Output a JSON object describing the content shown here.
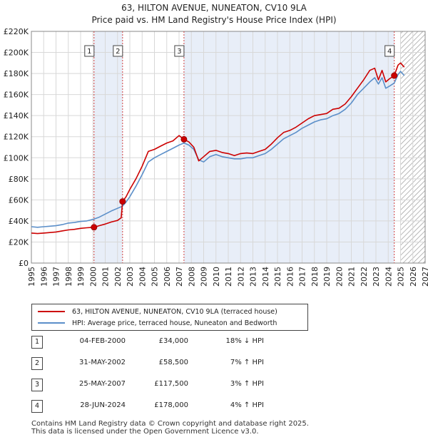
{
  "chart_data": {
    "type": "line",
    "title": "63, HILTON AVENUE, NUNEATON, CV10 9LA",
    "subtitle": "Price paid vs. HM Land Registry's House Price Index (HPI)",
    "xlim": [
      1995,
      2027
    ],
    "ylim": [
      0,
      220000
    ],
    "x_ticks": [
      "1995",
      "1996",
      "1997",
      "1998",
      "1999",
      "2000",
      "2001",
      "2002",
      "2003",
      "2004",
      "2005",
      "2006",
      "2007",
      "2008",
      "2009",
      "2010",
      "2011",
      "2012",
      "2013",
      "2014",
      "2015",
      "2016",
      "2017",
      "2018",
      "2019",
      "2020",
      "2021",
      "2022",
      "2023",
      "2024",
      "2025",
      "2026",
      "2027"
    ],
    "y_ticks": [
      {
        "value": 0,
        "label": "£0"
      },
      {
        "value": 20000,
        "label": "£20K"
      },
      {
        "value": 40000,
        "label": "£40K"
      },
      {
        "value": 60000,
        "label": "£60K"
      },
      {
        "value": 80000,
        "label": "£80K"
      },
      {
        "value": 100000,
        "label": "£100K"
      },
      {
        "value": 120000,
        "label": "£120K"
      },
      {
        "value": 140000,
        "label": "£140K"
      },
      {
        "value": 160000,
        "label": "£160K"
      },
      {
        "value": 180000,
        "label": "£180K"
      },
      {
        "value": 200000,
        "label": "£200K"
      },
      {
        "value": 220000,
        "label": "£220K"
      }
    ],
    "grid": true,
    "forecast_start": 2025.0,
    "shaded_periods": [
      [
        2000.09,
        2002.41
      ],
      [
        2007.4,
        2024.49
      ]
    ],
    "series": [
      {
        "name": "63, HILTON AVENUE, NUNEATON, CV10 9LA (terraced house)",
        "color": "#cc0000",
        "x": [
          1995.0,
          1995.5,
          1996.0,
          1996.5,
          1997.0,
          1997.5,
          1998.0,
          1998.5,
          1999.0,
          1999.5,
          2000.09,
          2000.5,
          2001.0,
          2001.5,
          2002.0,
          2002.3,
          2002.41,
          2002.7,
          2003.0,
          2003.5,
          2004.0,
          2004.5,
          2005.0,
          2005.5,
          2006.0,
          2006.5,
          2007.0,
          2007.4,
          2007.8,
          2008.2,
          2008.6,
          2009.0,
          2009.5,
          2010.0,
          2010.5,
          2011.0,
          2011.5,
          2012.0,
          2012.5,
          2013.0,
          2013.5,
          2014.0,
          2014.5,
          2015.0,
          2015.5,
          2016.0,
          2016.5,
          2017.0,
          2017.5,
          2018.0,
          2018.5,
          2019.0,
          2019.5,
          2020.0,
          2020.5,
          2021.0,
          2021.5,
          2022.0,
          2022.5,
          2022.9,
          2023.2,
          2023.5,
          2023.8,
          2024.1,
          2024.49,
          2024.8,
          2025.0,
          2025.3
        ],
        "values": [
          28500,
          28000,
          28500,
          29000,
          29500,
          30500,
          31500,
          32000,
          33000,
          33500,
          34000,
          35500,
          37000,
          39000,
          40500,
          43000,
          58500,
          63000,
          70000,
          80000,
          92000,
          106000,
          108000,
          111000,
          114000,
          116000,
          121000,
          117500,
          115000,
          110000,
          97000,
          101000,
          106000,
          107000,
          105000,
          104000,
          102000,
          104000,
          104500,
          104000,
          106000,
          108000,
          113000,
          119000,
          124000,
          126000,
          129000,
          133000,
          137000,
          140000,
          141000,
          142000,
          146000,
          147000,
          151000,
          158000,
          166000,
          174000,
          183000,
          185000,
          174000,
          183000,
          172000,
          175000,
          178000,
          188000,
          190000,
          186000
        ]
      },
      {
        "name": "HPI: Average price, terraced house, Nuneaton and Bedworth",
        "color": "#5b8fc9",
        "x": [
          1995.0,
          1995.5,
          1996.0,
          1996.5,
          1997.0,
          1997.5,
          1998.0,
          1998.5,
          1999.0,
          1999.5,
          2000.0,
          2000.5,
          2001.0,
          2001.5,
          2002.0,
          2002.4,
          2002.7,
          2003.0,
          2003.5,
          2004.0,
          2004.5,
          2005.0,
          2005.5,
          2006.0,
          2006.5,
          2007.0,
          2007.4,
          2007.8,
          2008.2,
          2008.6,
          2009.0,
          2009.5,
          2010.0,
          2010.5,
          2011.0,
          2011.5,
          2012.0,
          2012.5,
          2013.0,
          2013.5,
          2014.0,
          2014.5,
          2015.0,
          2015.5,
          2016.0,
          2016.5,
          2017.0,
          2017.5,
          2018.0,
          2018.5,
          2019.0,
          2019.5,
          2020.0,
          2020.5,
          2021.0,
          2021.5,
          2022.0,
          2022.5,
          2022.9,
          2023.2,
          2023.5,
          2023.8,
          2024.1,
          2024.49,
          2024.8,
          2025.0,
          2025.3
        ],
        "values": [
          34500,
          34000,
          34500,
          35000,
          35500,
          36500,
          38000,
          38500,
          39500,
          40000,
          41500,
          43500,
          46500,
          49500,
          52000,
          54000,
          58000,
          63000,
          73000,
          84000,
          96000,
          100000,
          103000,
          106000,
          109000,
          112000,
          114000,
          112000,
          108000,
          98000,
          96000,
          101000,
          103000,
          101000,
          100000,
          99000,
          99000,
          100000,
          100000,
          102000,
          104000,
          108000,
          113000,
          118000,
          121000,
          124000,
          128000,
          131000,
          134000,
          136000,
          137000,
          140000,
          142000,
          146000,
          152000,
          160000,
          166000,
          172000,
          176000,
          170000,
          176000,
          166000,
          168000,
          171000,
          179000,
          182000,
          178000
        ]
      }
    ],
    "markers": [
      {
        "id": "1",
        "date": 2000.09,
        "value": 34000
      },
      {
        "id": "2",
        "date": 2002.41,
        "value": 58500
      },
      {
        "id": "3",
        "date": 2007.4,
        "value": 117500
      },
      {
        "id": "4",
        "date": 2024.49,
        "value": 178000
      }
    ],
    "legend_position": "bottom-left"
  },
  "legend": {
    "property_label": "63, HILTON AVENUE, NUNEATON, CV10 9LA (terraced house)",
    "hpi_label": "HPI: Average price, terraced house, Nuneaton and Bedworth",
    "property_color": "#cc0000",
    "hpi_color": "#5b8fc9"
  },
  "transactions": [
    {
      "num": "1",
      "date": "04-FEB-2000",
      "price": "£34,000",
      "hpi": "18% ↓ HPI"
    },
    {
      "num": "2",
      "date": "31-MAY-2002",
      "price": "£58,500",
      "hpi": "7% ↑ HPI"
    },
    {
      "num": "3",
      "date": "25-MAY-2007",
      "price": "£117,500",
      "hpi": "3% ↑ HPI"
    },
    {
      "num": "4",
      "date": "28-JUN-2024",
      "price": "£178,000",
      "hpi": "4% ↑ HPI"
    }
  ],
  "footer": {
    "line1": "Contains HM Land Registry data © Crown copyright and database right 2025.",
    "line2": "This data is licensed under the Open Government Licence v3.0."
  }
}
